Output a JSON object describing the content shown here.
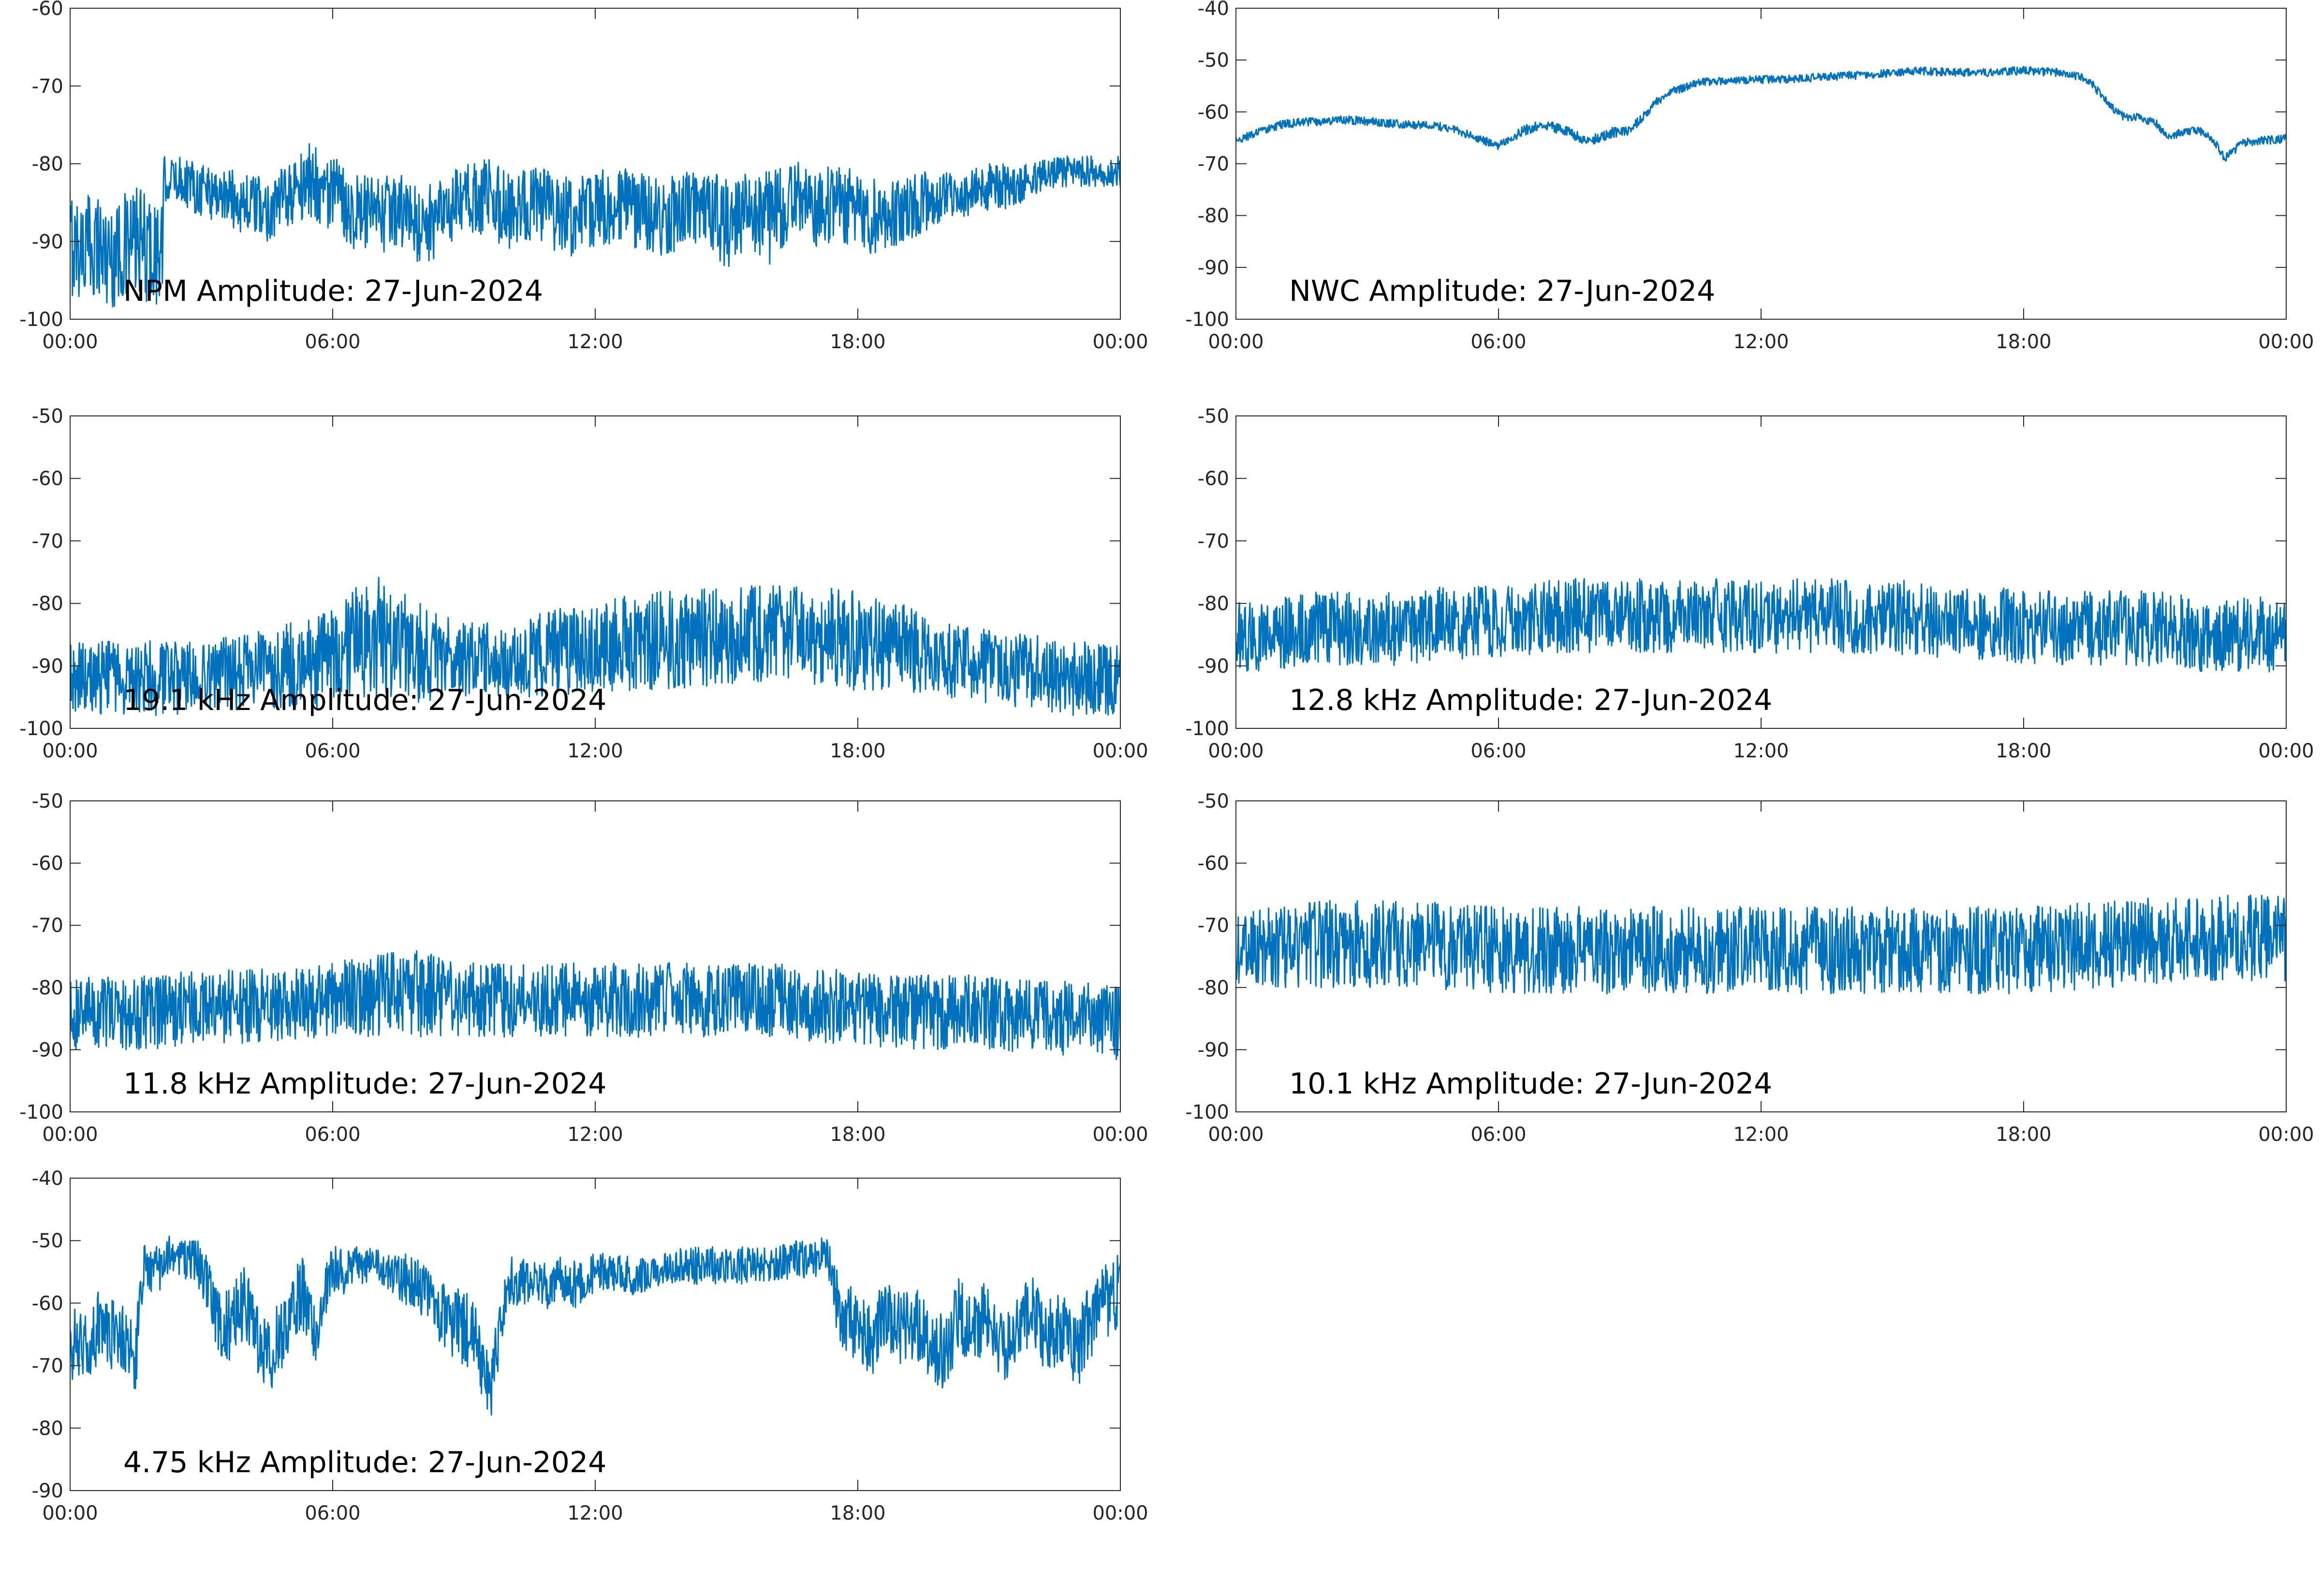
{
  "chart_data": [
    {
      "type": "line",
      "title": "NPM Amplitude: 27-Jun-2024",
      "xlabel": "",
      "ylabel": "",
      "x_ticks": [
        "00:00",
        "06:00",
        "12:00",
        "18:00",
        "00:00"
      ],
      "ylim": [
        -100,
        -60
      ],
      "y_ticks": [
        -100,
        -90,
        -80,
        -70,
        -60
      ],
      "color": "#0072BD",
      "grid": false,
      "series": [
        {
          "x_hours": [
            0,
            0.3,
            0.6,
            0.9,
            1.2,
            1.5,
            1.8,
            2.1,
            2.15,
            2.5,
            3,
            3.5,
            4,
            4.5,
            5,
            5.5,
            6,
            6.5,
            7,
            7.5,
            8,
            8.5,
            9,
            9.5,
            10,
            10.5,
            11,
            11.5,
            12,
            12.5,
            13,
            13.5,
            14,
            14.5,
            15,
            15.5,
            16,
            16.5,
            17,
            17.5,
            18,
            18.5,
            19,
            19.5,
            20,
            20.5,
            21,
            21.5,
            22,
            22.5,
            23,
            23.5,
            24
          ],
          "amplitude_db": [
            -90,
            -91,
            -90,
            -92,
            -91,
            -90,
            -91,
            -92,
            -82,
            -82,
            -83,
            -84,
            -85,
            -86,
            -84,
            -82,
            -84,
            -86,
            -87,
            -86,
            -88,
            -87,
            -85,
            -84,
            -86,
            -85,
            -86,
            -87,
            -86,
            -85,
            -86,
            -87,
            -86,
            -85,
            -88,
            -86,
            -87,
            -84,
            -86,
            -85,
            -86,
            -87,
            -86,
            -85,
            -84,
            -84,
            -83,
            -83,
            -82,
            -81,
            -81,
            -81,
            -81
          ],
          "noise_band_db": [
            7,
            7,
            7,
            7,
            7,
            7,
            7,
            7,
            3,
            3,
            4,
            4,
            4,
            4,
            4,
            5,
            5,
            5,
            5,
            5,
            5,
            5,
            5,
            5,
            5,
            5,
            5,
            5,
            5,
            5,
            5,
            5,
            5,
            5,
            6,
            5,
            6,
            5,
            5,
            5,
            5,
            5,
            4,
            4,
            3,
            3,
            3,
            3,
            2,
            2,
            2,
            2,
            2
          ]
        }
      ]
    },
    {
      "type": "line",
      "title": "NWC Amplitude: 27-Jun-2024",
      "xlabel": "",
      "ylabel": "",
      "x_ticks": [
        "00:00",
        "06:00",
        "12:00",
        "18:00",
        "00:00"
      ],
      "ylim": [
        -100,
        -40
      ],
      "y_ticks": [
        -100,
        -90,
        -80,
        -70,
        -60,
        -50,
        -40
      ],
      "color": "#0072BD",
      "grid": false,
      "series": [
        {
          "x_hours": [
            0,
            0.5,
            1,
            1.5,
            2,
            2.5,
            3,
            3.5,
            4,
            4.5,
            5,
            5.5,
            6,
            6.3,
            6.6,
            7,
            7.5,
            8,
            8.3,
            8.6,
            9,
            9.3,
            9.6,
            10,
            10.5,
            11,
            12,
            13,
            14,
            15,
            15.5,
            16,
            17,
            18,
            18.5,
            19,
            19.5,
            20,
            20.3,
            20.6,
            21,
            21.3,
            21.6,
            22,
            22.3,
            22.6,
            23,
            23.5,
            24
          ],
          "amplitude_db": [
            -65.5,
            -64,
            -62.5,
            -62,
            -61.8,
            -61.5,
            -61.8,
            -62.2,
            -62.5,
            -62.5,
            -63.5,
            -65,
            -66.5,
            -65,
            -63.5,
            -62.5,
            -63.5,
            -65.5,
            -65,
            -64,
            -63.5,
            -61,
            -58,
            -56,
            -54.5,
            -54,
            -53.8,
            -53.5,
            -53,
            -52.5,
            -52,
            -52.3,
            -52.5,
            -52,
            -52.3,
            -52.5,
            -54,
            -59,
            -61,
            -61,
            -62,
            -65,
            -64,
            -63.5,
            -65,
            -69,
            -66,
            -65.5,
            -65.2
          ],
          "noise_band_db": [
            0.8,
            0.8,
            0.8,
            0.8,
            0.8,
            0.8,
            0.8,
            0.8,
            0.8,
            0.8,
            0.8,
            0.8,
            0.8,
            0.8,
            1,
            1,
            1,
            1,
            1,
            1,
            1,
            0.8,
            0.8,
            0.8,
            0.8,
            0.8,
            0.8,
            0.8,
            0.8,
            0.8,
            0.8,
            0.8,
            0.8,
            0.8,
            0.8,
            0.8,
            0.8,
            0.8,
            0.8,
            0.8,
            0.8,
            0.8,
            0.8,
            0.8,
            0.8,
            0.8,
            0.8,
            0.8,
            0.8
          ]
        }
      ]
    },
    {
      "type": "line",
      "title": "19.1 kHz Amplitude: 27-Jun-2024",
      "xlabel": "",
      "ylabel": "",
      "x_ticks": [
        "00:00",
        "06:00",
        "12:00",
        "18:00",
        "00:00"
      ],
      "ylim": [
        -100,
        -50
      ],
      "y_ticks": [
        -100,
        -90,
        -80,
        -70,
        -60,
        -50
      ],
      "color": "#0072BD",
      "grid": false,
      "series": [
        {
          "x_hours": [
            0,
            1,
            2,
            3,
            4,
            5,
            6,
            6.5,
            7,
            7.5,
            8,
            8.5,
            9,
            10,
            11,
            12,
            13,
            14,
            15,
            16,
            17,
            18,
            19,
            20,
            21,
            22,
            23,
            24
          ],
          "amplitude_db": [
            -92,
            -92,
            -92,
            -92,
            -91,
            -90,
            -89,
            -86,
            -85,
            -86,
            -88,
            -89,
            -89,
            -89,
            -88,
            -87,
            -86,
            -86,
            -85,
            -85,
            -85,
            -86,
            -87,
            -89,
            -90,
            -91,
            -92,
            -92
          ],
          "noise_band_db": [
            6,
            6,
            6,
            6,
            6,
            7,
            8,
            9,
            10,
            9,
            8,
            7,
            6,
            6,
            7,
            7,
            8,
            8,
            8,
            8,
            8,
            8,
            7,
            6,
            6,
            6,
            6,
            6
          ]
        }
      ]
    },
    {
      "type": "line",
      "title": "12.8 kHz Amplitude: 27-Jun-2024",
      "xlabel": "",
      "ylabel": "",
      "x_ticks": [
        "00:00",
        "06:00",
        "12:00",
        "18:00",
        "00:00"
      ],
      "ylim": [
        -100,
        -50
      ],
      "y_ticks": [
        -100,
        -90,
        -80,
        -70,
        -60,
        -50
      ],
      "color": "#0072BD",
      "grid": false,
      "series": [
        {
          "x_hours": [
            0,
            1,
            2,
            3,
            4,
            5,
            6,
            7,
            8,
            9,
            10,
            11,
            12,
            13,
            14,
            15,
            16,
            17,
            18,
            19,
            20,
            21,
            22,
            23,
            24
          ],
          "amplitude_db": [
            -85,
            -85,
            -84,
            -84,
            -84,
            -83,
            -83,
            -82,
            -82,
            -82,
            -82,
            -82,
            -82,
            -82,
            -82,
            -82,
            -83,
            -83,
            -84,
            -84,
            -84,
            -84,
            -85,
            -85,
            -85
          ],
          "noise_band_db": [
            6,
            6,
            6,
            6,
            6,
            6,
            6,
            6,
            6,
            6,
            6,
            6,
            6,
            6,
            6,
            6,
            6,
            6,
            6,
            6,
            6,
            6,
            6,
            6,
            6
          ]
        }
      ]
    },
    {
      "type": "line",
      "title": "11.8 kHz Amplitude: 27-Jun-2024",
      "xlabel": "",
      "ylabel": "",
      "x_ticks": [
        "00:00",
        "06:00",
        "12:00",
        "18:00",
        "00:00"
      ],
      "ylim": [
        -100,
        -50
      ],
      "y_ticks": [
        -100,
        -90,
        -80,
        -70,
        -60,
        -50
      ],
      "color": "#0072BD",
      "grid": false,
      "series": [
        {
          "x_hours": [
            0,
            1,
            2,
            3,
            4,
            5,
            6,
            7,
            8,
            9,
            10,
            11,
            12,
            13,
            14,
            15,
            16,
            17,
            18,
            19,
            20,
            21,
            22,
            23,
            24
          ],
          "amplitude_db": [
            -84,
            -84,
            -84,
            -83,
            -83,
            -83,
            -82,
            -81,
            -81,
            -82,
            -82,
            -82,
            -82,
            -82,
            -82,
            -82,
            -82,
            -83,
            -83,
            -84,
            -84,
            -84,
            -85,
            -85,
            -86
          ],
          "noise_band_db": [
            6,
            6,
            6,
            6,
            6,
            6,
            6,
            7,
            7,
            6,
            6,
            6,
            6,
            6,
            6,
            6,
            6,
            6,
            6,
            6,
            6,
            6,
            6,
            6,
            6
          ]
        }
      ]
    },
    {
      "type": "line",
      "title": "10.1 kHz Amplitude: 27-Jun-2024",
      "xlabel": "",
      "ylabel": "",
      "x_ticks": [
        "00:00",
        "06:00",
        "12:00",
        "18:00",
        "00:00"
      ],
      "ylim": [
        -100,
        -50
      ],
      "y_ticks": [
        -100,
        -90,
        -80,
        -70,
        -60,
        -50
      ],
      "color": "#0072BD",
      "grid": false,
      "series": [
        {
          "x_hours": [
            0,
            2,
            4,
            6,
            8,
            10,
            12,
            14,
            16,
            18,
            20,
            22,
            24
          ],
          "amplitude_db": [
            -74,
            -73,
            -73,
            -74,
            -74,
            -74,
            -74,
            -74,
            -74,
            -74,
            -73,
            -72,
            -72
          ],
          "noise_band_db": [
            6,
            7,
            7,
            7,
            7,
            7,
            7,
            7,
            7,
            7,
            7,
            7,
            7
          ]
        }
      ]
    },
    {
      "type": "line",
      "title": "4.75 kHz Amplitude: 27-Jun-2024",
      "xlabel": "",
      "ylabel": "",
      "x_ticks": [
        "00:00",
        "06:00",
        "12:00",
        "18:00",
        "00:00"
      ],
      "ylim": [
        -90,
        -40
      ],
      "y_ticks": [
        -90,
        -80,
        -70,
        -60,
        -50,
        -40
      ],
      "color": "#0072BD",
      "grid": false,
      "series": [
        {
          "x_hours": [
            0,
            0.3,
            0.6,
            0.9,
            1.2,
            1.5,
            1.7,
            2,
            2.3,
            2.6,
            3,
            3.3,
            3.6,
            4,
            4.3,
            4.6,
            5,
            5.3,
            5.6,
            6,
            6.3,
            6.6,
            7,
            7.3,
            7.6,
            8,
            8.3,
            8.6,
            9,
            9.3,
            9.6,
            10,
            10.3,
            10.6,
            11,
            11.3,
            11.6,
            12,
            12.5,
            13,
            13.5,
            14,
            14.5,
            15,
            15.5,
            16,
            16.5,
            17,
            17.3,
            17.6,
            18,
            18.3,
            18.6,
            19,
            19.3,
            19.6,
            20,
            20.3,
            20.6,
            21,
            21.3,
            21.6,
            22,
            22.3,
            22.6,
            23,
            23.3,
            23.6,
            24
          ],
          "amplitude_db": [
            -66,
            -68,
            -64,
            -65,
            -66,
            -68,
            -54,
            -55,
            -52,
            -53,
            -54,
            -62,
            -64,
            -60,
            -66,
            -68,
            -62,
            -58,
            -66,
            -54,
            -55,
            -54,
            -54,
            -55,
            -56,
            -58,
            -60,
            -62,
            -64,
            -66,
            -74,
            -56,
            -57,
            -56,
            -58,
            -56,
            -57,
            -55,
            -55,
            -56,
            -54,
            -54,
            -54,
            -54,
            -54,
            -54,
            -53,
            -53,
            -52,
            -62,
            -64,
            -66,
            -62,
            -64,
            -63,
            -66,
            -68,
            -62,
            -64,
            -62,
            -68,
            -66,
            -60,
            -66,
            -64,
            -68,
            -63,
            -60,
            -58
          ],
          "noise_band_db": [
            6,
            6,
            6,
            6,
            6,
            6,
            4,
            4,
            3,
            3,
            4,
            6,
            6,
            6,
            6,
            6,
            6,
            6,
            6,
            4,
            4,
            3,
            3,
            3,
            4,
            5,
            5,
            6,
            6,
            6,
            6,
            4,
            4,
            3,
            4,
            4,
            4,
            3,
            3,
            3,
            3,
            3,
            3,
            3,
            3,
            3,
            3,
            3,
            3,
            6,
            6,
            6,
            6,
            6,
            6,
            6,
            6,
            6,
            6,
            6,
            6,
            6,
            6,
            6,
            6,
            6,
            6,
            6,
            6
          ]
        }
      ]
    }
  ]
}
